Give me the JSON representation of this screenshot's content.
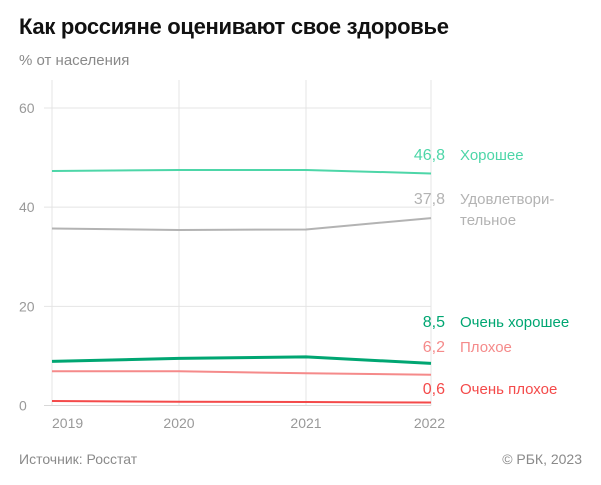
{
  "title": "Как россияне оценивают свое здоровье",
  "subtitle": "% от населения",
  "source": "Источник: Росстат",
  "copyright": "© РБК, 2023",
  "chart_data": {
    "type": "line",
    "title": "Как россияне оценивают свое здоровье",
    "ylabel": "% от населения",
    "x": [
      "2019",
      "2020",
      "2021",
      "2022"
    ],
    "ylim": [
      0,
      60
    ],
    "yticks": [
      "0",
      "20",
      "40",
      "60"
    ],
    "grid": true,
    "series": [
      {
        "name": "Хорошее",
        "name_lines": [
          "Хорошее"
        ],
        "end_label": "46,8",
        "color": "#4dd6a8",
        "values": [
          47.3,
          47.5,
          47.5,
          46.8
        ]
      },
      {
        "name": "Удовлетворительное",
        "name_lines": [
          "Удовлетвори-",
          "тельное"
        ],
        "end_label": "37,8",
        "color": "#b3b3b3",
        "values": [
          35.7,
          35.4,
          35.5,
          37.8
        ]
      },
      {
        "name": "Очень хорошее",
        "name_lines": [
          "Очень хорошее"
        ],
        "end_label": "8,5",
        "color": "#00a672",
        "values": [
          8.9,
          9.5,
          9.8,
          8.5
        ]
      },
      {
        "name": "Плохое",
        "name_lines": [
          "Плохое"
        ],
        "end_label": "6,2",
        "color": "#f58a8a",
        "values": [
          6.9,
          6.9,
          6.5,
          6.2
        ]
      },
      {
        "name": "Очень плохое",
        "name_lines": [
          "Очень плохое"
        ],
        "end_label": "0,6",
        "color": "#f44a4a",
        "values": [
          0.9,
          0.75,
          0.7,
          0.6
        ]
      }
    ]
  }
}
